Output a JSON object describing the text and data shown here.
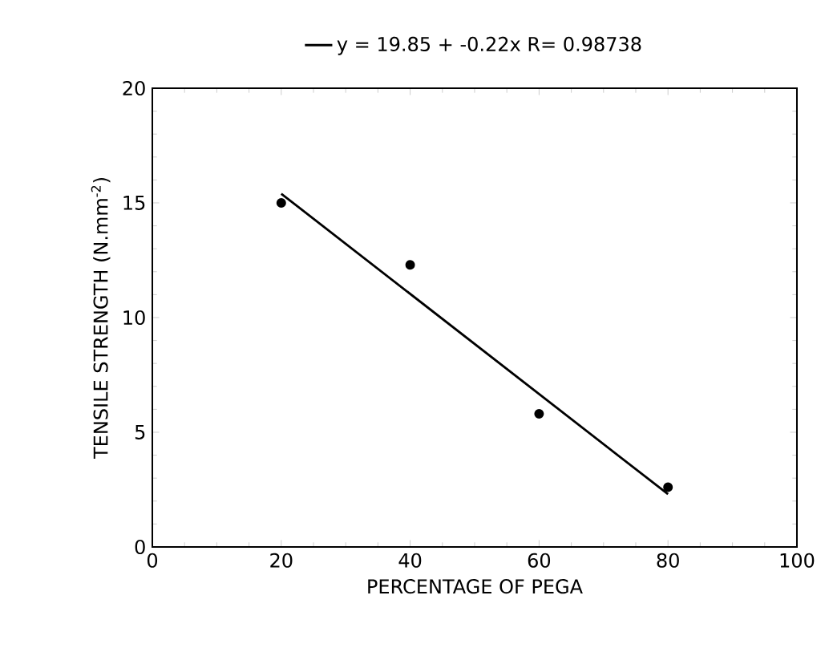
{
  "chart_data": {
    "type": "scatter",
    "xlabel": "PERCENTAGE OF PEGA",
    "ylabel": "TENSILE STRENGTH (N.mm$^{-2}$)",
    "series": [
      {
        "color": "#000000",
        "marker": "circle",
        "x": [
          20,
          40,
          60,
          80
        ],
        "values": [
          15.0,
          12.3,
          5.8,
          2.6
        ]
      },
      {
        "type": "line",
        "name": "y = 19.85 + -0.22x R= 0.98738",
        "color": "#000000",
        "marker": "none",
        "line_style": "solid",
        "x": [
          20,
          80
        ],
        "values": [
          15.4,
          2.3
        ]
      }
    ],
    "xlim": [
      0,
      100
    ],
    "ylim": [
      0,
      20
    ],
    "xticks": [
      0,
      20,
      40,
      60,
      80,
      100
    ],
    "yticks": [
      0,
      5,
      10,
      15,
      20
    ],
    "grid": false,
    "legend": "top"
  }
}
